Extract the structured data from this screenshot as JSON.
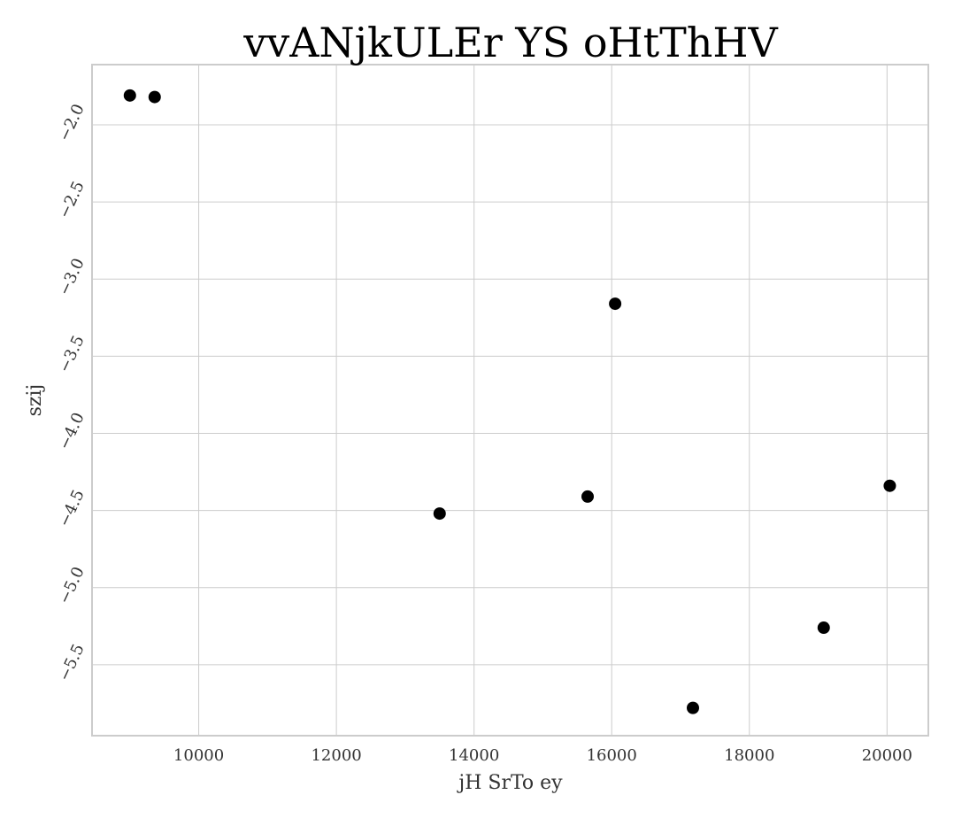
{
  "chart_data": {
    "type": "scatter",
    "title": "vvANjkULEr  YS oHtThHV",
    "xlabel": "jH SrTo ey",
    "ylabel": "szij",
    "xlim": [
      8450,
      20600
    ],
    "ylim": [
      -5.96,
      -1.61
    ],
    "xticks": [
      10000,
      12000,
      14000,
      16000,
      18000,
      20000
    ],
    "xtick_labels": [
      "10000",
      "12000",
      "14000",
      "16000",
      "18000",
      "20000"
    ],
    "yticks": [
      -2.0,
      -2.5,
      -3.0,
      -3.5,
      -4.0,
      -4.5,
      -5.0,
      -5.5
    ],
    "ytick_labels": [
      "−2.0",
      "−2.5",
      "−3.0",
      "−3.5",
      "−4.0",
      "−4.5",
      "−5.0",
      "−5.5"
    ],
    "grid": true,
    "point_color": "#000000",
    "points": [
      {
        "x": 9000,
        "y": -1.81
      },
      {
        "x": 9360,
        "y": -1.82
      },
      {
        "x": 13500,
        "y": -4.52
      },
      {
        "x": 15650,
        "y": -4.41
      },
      {
        "x": 16050,
        "y": -3.16
      },
      {
        "x": 17180,
        "y": -5.78
      },
      {
        "x": 19080,
        "y": -5.26
      },
      {
        "x": 20040,
        "y": -4.34
      }
    ]
  }
}
